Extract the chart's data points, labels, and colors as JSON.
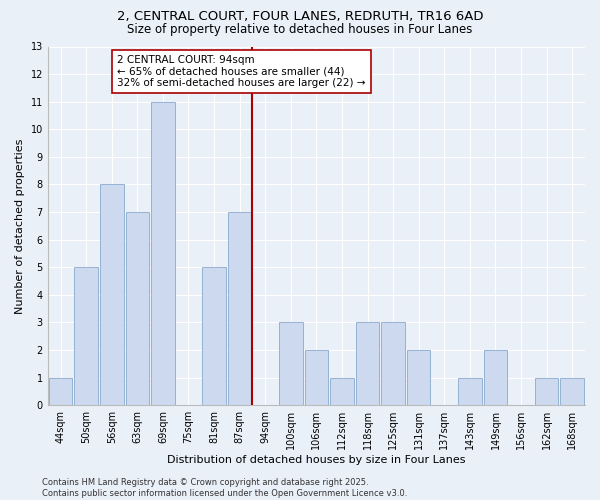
{
  "title": "2, CENTRAL COURT, FOUR LANES, REDRUTH, TR16 6AD",
  "subtitle": "Size of property relative to detached houses in Four Lanes",
  "xlabel": "Distribution of detached houses by size in Four Lanes",
  "ylabel": "Number of detached properties",
  "categories": [
    "44sqm",
    "50sqm",
    "56sqm",
    "63sqm",
    "69sqm",
    "75sqm",
    "81sqm",
    "87sqm",
    "94sqm",
    "100sqm",
    "106sqm",
    "112sqm",
    "118sqm",
    "125sqm",
    "131sqm",
    "137sqm",
    "143sqm",
    "149sqm",
    "156sqm",
    "162sqm",
    "168sqm"
  ],
  "values": [
    1,
    5,
    8,
    7,
    11,
    0,
    5,
    7,
    0,
    3,
    2,
    1,
    3,
    3,
    2,
    0,
    1,
    2,
    0,
    1,
    1
  ],
  "bar_color": "#ccd9ee",
  "bar_edge_color": "#8aaacc",
  "vline_color": "#aa0000",
  "annotation_text": "2 CENTRAL COURT: 94sqm\n← 65% of detached houses are smaller (44)\n32% of semi-detached houses are larger (22) →",
  "annotation_box_color": "#ffffff",
  "annotation_box_edge": "#aa0000",
  "ylim": [
    0,
    13
  ],
  "yticks": [
    0,
    1,
    2,
    3,
    4,
    5,
    6,
    7,
    8,
    9,
    10,
    11,
    12,
    13
  ],
  "footer_line1": "Contains HM Land Registry data © Crown copyright and database right 2025.",
  "footer_line2": "Contains public sector information licensed under the Open Government Licence v3.0.",
  "background_color": "#eaf0f8",
  "grid_color": "#ffffff",
  "title_fontsize": 9.5,
  "subtitle_fontsize": 8.5,
  "axis_label_fontsize": 8,
  "tick_fontsize": 7,
  "annotation_fontsize": 7.5,
  "footer_fontsize": 6
}
